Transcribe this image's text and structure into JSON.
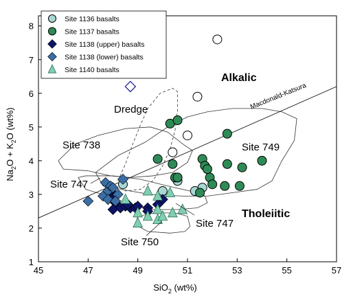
{
  "chart_data": {
    "type": "scatter",
    "xlabel_main": "SiO",
    "xlabel_sub": "2",
    "xlabel_tail": " (wt%)",
    "ylabel_parts": [
      "Na",
      "2",
      "O + K",
      "2",
      "O (wt%)"
    ],
    "xlim": [
      45,
      57
    ],
    "ylim": [
      1,
      8.3
    ],
    "x_ticks": [
      "45",
      "47",
      "49",
      "51",
      "53",
      "55",
      "57"
    ],
    "y_ticks": [
      "1",
      "2",
      "3",
      "4",
      "5",
      "6",
      "7",
      "8"
    ],
    "grid": false,
    "legend_position": "top-left",
    "series": [
      {
        "name": "Site 1136 basalts",
        "marker": "circle",
        "color": "#a8d8d4",
        "points": [
          [
            48.4,
            3.3
          ],
          [
            50.0,
            3.1
          ],
          [
            50.6,
            3.4
          ],
          [
            50.6,
            3.5
          ],
          [
            51.6,
            3.2
          ],
          [
            51.3,
            3.1
          ]
        ]
      },
      {
        "name": "Site 1137 basalts",
        "marker": "circle",
        "color": "#2e8b57",
        "points": [
          [
            50.3,
            5.1
          ],
          [
            50.6,
            5.2
          ],
          [
            50.4,
            3.9
          ],
          [
            49.8,
            4.05
          ],
          [
            50.5,
            3.5
          ],
          [
            50.6,
            3.5
          ],
          [
            51.6,
            4.05
          ],
          [
            51.7,
            3.85
          ],
          [
            51.8,
            3.75
          ],
          [
            51.9,
            3.5
          ],
          [
            52.0,
            3.3
          ],
          [
            52.6,
            4.8
          ],
          [
            52.6,
            3.9
          ],
          [
            53.2,
            3.8
          ],
          [
            54.0,
            4.0
          ],
          [
            52.5,
            3.25
          ],
          [
            53.1,
            3.25
          ],
          [
            51.5,
            3.05
          ]
        ]
      },
      {
        "name": "Site 1138 (upper) basalts",
        "marker": "diamond",
        "color": "#0d1466",
        "points": [
          [
            47.9,
            3.1
          ],
          [
            48.1,
            2.75
          ],
          [
            48.0,
            2.55
          ],
          [
            48.3,
            2.6
          ],
          [
            48.5,
            2.65
          ],
          [
            48.7,
            2.6
          ],
          [
            48.9,
            2.6
          ],
          [
            48.0,
            2.85
          ],
          [
            48.6,
            2.7
          ],
          [
            49.0,
            2.65
          ],
          [
            49.4,
            2.6
          ],
          [
            49.4,
            2.5
          ],
          [
            49.8,
            2.7
          ],
          [
            50.0,
            2.85
          ]
        ]
      },
      {
        "name": "Site 1138 (lower) basalts",
        "marker": "diamond",
        "color": "#3a6ea5",
        "points": [
          [
            47.0,
            2.8
          ],
          [
            47.6,
            2.95
          ],
          [
            47.7,
            3.35
          ],
          [
            47.8,
            3.1
          ],
          [
            47.9,
            3.25
          ],
          [
            48.0,
            3.2
          ],
          [
            47.8,
            2.85
          ],
          [
            48.4,
            3.45
          ],
          [
            48.2,
            3.0
          ],
          [
            48.1,
            2.8
          ]
        ]
      },
      {
        "name": "Site 1140 basalts",
        "marker": "triangle",
        "color": "#7fcfb0",
        "points": [
          [
            48.5,
            2.85
          ],
          [
            49.0,
            2.45
          ],
          [
            49.0,
            2.15
          ],
          [
            49.4,
            3.1
          ],
          [
            49.4,
            2.35
          ],
          [
            49.8,
            2.55
          ],
          [
            49.8,
            2.25
          ],
          [
            50.0,
            2.35
          ],
          [
            50.4,
            2.45
          ],
          [
            50.3,
            3.05
          ],
          [
            50.8,
            2.55
          ],
          [
            49.8,
            2.95
          ]
        ]
      },
      {
        "name": "",
        "marker": "open-circle",
        "color": "#ffffff",
        "points": [
          [
            52.2,
            7.6
          ],
          [
            51.4,
            5.9
          ],
          [
            51.0,
            4.75
          ],
          [
            50.4,
            4.25
          ]
        ]
      },
      {
        "name": "",
        "marker": "open-diamond",
        "color": "#ffffff",
        "points": [
          [
            48.7,
            6.2
          ]
        ]
      }
    ],
    "divider_line": {
      "label": "Macdonald-Katsura",
      "from": [
        45,
        2.3
      ],
      "to": [
        57,
        6.2
      ]
    },
    "field_outlines": {
      "site_738": [
        [
          45.8,
          4.0
        ],
        [
          46.5,
          4.5
        ],
        [
          47.4,
          4.75
        ],
        [
          48.5,
          4.95
        ],
        [
          49.5,
          5.0
        ],
        [
          50.2,
          4.85
        ],
        [
          50.8,
          4.5
        ],
        [
          51.2,
          4.3
        ],
        [
          51.0,
          3.95
        ],
        [
          50.4,
          3.65
        ],
        [
          49.6,
          3.55
        ],
        [
          48.7,
          3.5
        ],
        [
          47.9,
          3.55
        ],
        [
          47.0,
          3.7
        ],
        [
          46.0,
          3.75
        ],
        [
          45.8,
          4.0
        ]
      ],
      "site_749": [
        [
          47.3,
          3.65
        ],
        [
          48.2,
          4.15
        ],
        [
          49.3,
          4.55
        ],
        [
          50.3,
          5.05
        ],
        [
          51.0,
          5.3
        ],
        [
          51.8,
          5.45
        ],
        [
          52.8,
          5.55
        ],
        [
          54.0,
          5.55
        ],
        [
          54.8,
          5.45
        ],
        [
          55.4,
          5.25
        ],
        [
          55.3,
          4.6
        ],
        [
          54.8,
          4.0
        ],
        [
          54.4,
          3.4
        ],
        [
          53.8,
          3.15
        ],
        [
          52.8,
          3.05
        ],
        [
          51.8,
          2.95
        ],
        [
          50.8,
          2.95
        ],
        [
          49.5,
          3.0
        ],
        [
          48.7,
          3.1
        ],
        [
          47.6,
          3.25
        ],
        [
          47.3,
          3.65
        ]
      ],
      "site_747": [
        [
          46.6,
          3.5
        ],
        [
          46.9,
          3.15
        ],
        [
          47.8,
          2.95
        ],
        [
          48.7,
          2.7
        ],
        [
          49.6,
          2.55
        ],
        [
          50.6,
          2.55
        ],
        [
          51.4,
          2.6
        ],
        [
          51.8,
          2.75
        ],
        [
          51.7,
          2.95
        ],
        [
          51.1,
          3.1
        ],
        [
          50.2,
          3.25
        ],
        [
          49.1,
          3.45
        ],
        [
          48.0,
          3.55
        ],
        [
          46.9,
          3.55
        ],
        [
          46.6,
          3.5
        ]
      ],
      "site_750": [
        [
          48.9,
          2.1
        ],
        [
          49.4,
          1.9
        ],
        [
          50.3,
          1.85
        ],
        [
          50.9,
          1.9
        ],
        [
          51.1,
          2.05
        ],
        [
          51.0,
          2.35
        ],
        [
          50.5,
          2.45
        ],
        [
          49.7,
          2.45
        ],
        [
          49.0,
          2.35
        ],
        [
          48.9,
          2.1
        ]
      ],
      "dredge": [
        [
          48.2,
          3.4
        ],
        [
          48.5,
          3.9
        ],
        [
          48.8,
          4.5
        ],
        [
          49.1,
          5.05
        ],
        [
          49.4,
          5.55
        ],
        [
          49.9,
          6.0
        ],
        [
          50.4,
          6.15
        ],
        [
          50.6,
          6.05
        ],
        [
          50.6,
          5.5
        ],
        [
          50.5,
          4.9
        ],
        [
          50.3,
          4.35
        ],
        [
          50.0,
          3.85
        ],
        [
          49.6,
          3.4
        ],
        [
          49.1,
          3.15
        ],
        [
          48.5,
          3.1
        ],
        [
          48.2,
          3.4
        ]
      ]
    },
    "annotations": {
      "alkalic": "Alkalic",
      "tholeiitic": "Tholeiitic",
      "dredge": "Dredge",
      "site_738": "Site 738",
      "site_749": "Site 749",
      "site_747_left": "Site 747",
      "site_747_right": "Site 747",
      "site_750": "Site 750"
    }
  }
}
